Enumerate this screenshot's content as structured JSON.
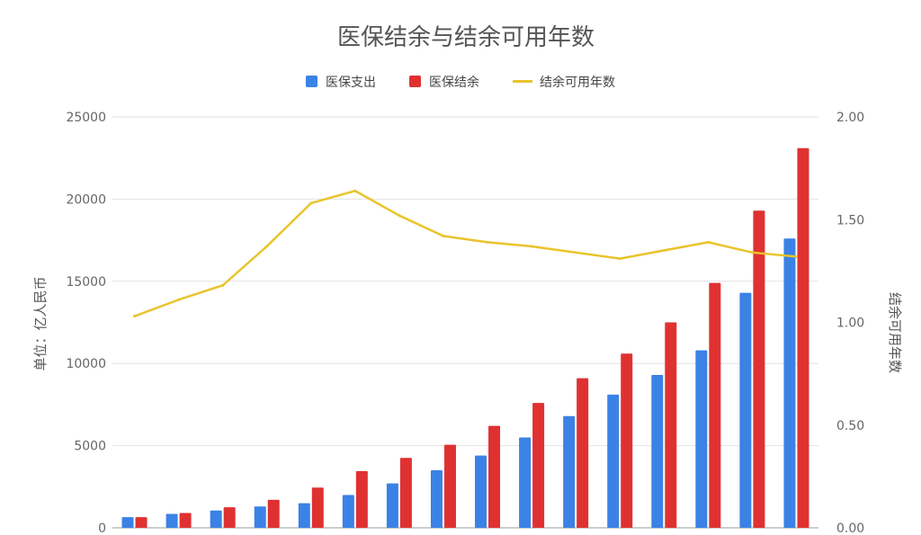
{
  "chart_data": {
    "type": "bar",
    "title": "医保结余与结余可用年数",
    "ylabel": "单位：亿人民币",
    "y2label": "结余可用年数",
    "ylim": [
      0,
      25000
    ],
    "y2lim": [
      0,
      2.0
    ],
    "y_ticks": [
      "0",
      "5000",
      "10000",
      "15000",
      "20000",
      "25000"
    ],
    "y2_ticks": [
      "0.00",
      "0.50",
      "1.00",
      "1.50",
      "2.00"
    ],
    "grid": true,
    "legend_position": "top",
    "categories_count": 16,
    "series": [
      {
        "name": "医保支出",
        "kind": "bar",
        "color": "#3b82e6",
        "values": [
          650,
          850,
          1050,
          1300,
          1500,
          2000,
          2700,
          3500,
          4400,
          5500,
          6800,
          8100,
          9300,
          10800,
          14300,
          17600
        ]
      },
      {
        "name": "医保结余",
        "kind": "bar",
        "color": "#e03131",
        "values": [
          650,
          900,
          1250,
          1700,
          2450,
          3450,
          4250,
          5050,
          6200,
          7600,
          9100,
          10600,
          12500,
          14900,
          19300,
          23100
        ]
      },
      {
        "name": "结余可用年数",
        "kind": "line",
        "axis": "right",
        "color": "#e9c42c",
        "values": [
          1.03,
          1.11,
          1.18,
          1.37,
          1.58,
          1.64,
          1.52,
          1.42,
          1.39,
          1.37,
          1.34,
          1.31,
          1.35,
          1.39,
          1.34,
          1.32
        ]
      }
    ]
  }
}
